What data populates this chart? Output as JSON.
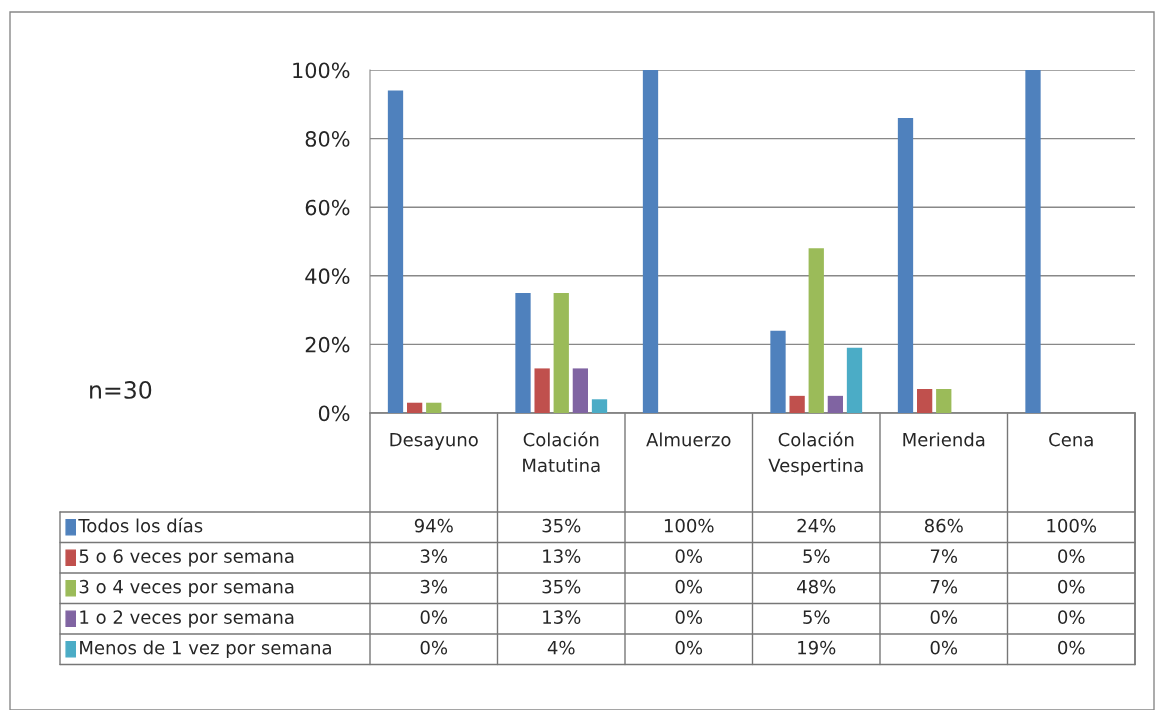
{
  "chart_data": {
    "type": "bar",
    "categories": [
      "Desayuno",
      "Colación Matutina",
      "Almuerzo",
      "Colación Vespertina",
      "Merienda",
      "Cena"
    ],
    "series": [
      {
        "name": "Todos los días",
        "color": "#4f81bd",
        "values": [
          94,
          35,
          100,
          24,
          86,
          100
        ],
        "value_labels": [
          "94%",
          "35%",
          "100%",
          "24%",
          "86%",
          "100%"
        ]
      },
      {
        "name": "5 o 6 veces por semana",
        "color": "#c0504d",
        "values": [
          3,
          13,
          0,
          5,
          7,
          0
        ],
        "value_labels": [
          "3%",
          "13%",
          "0%",
          "5%",
          "7%",
          "0%"
        ]
      },
      {
        "name": "3 o 4 veces por semana",
        "color": "#9bbb59",
        "values": [
          3,
          35,
          0,
          48,
          7,
          0
        ],
        "value_labels": [
          "3%",
          "35%",
          "0%",
          "48%",
          "7%",
          "0%"
        ]
      },
      {
        "name": "1 o 2 veces por semana",
        "color": "#8064a2",
        "values": [
          0,
          13,
          0,
          5,
          0,
          0
        ],
        "value_labels": [
          "0%",
          "13%",
          "0%",
          "5%",
          "0%",
          "0%"
        ]
      },
      {
        "name": "Menos de 1 vez por semana",
        "color": "#4bacc6",
        "values": [
          0,
          4,
          0,
          19,
          0,
          0
        ],
        "value_labels": [
          "0%",
          "4%",
          "0%",
          "19%",
          "0%",
          "0%"
        ]
      }
    ],
    "ylim": [
      0,
      100
    ],
    "yticks": [
      {
        "value": 0,
        "label": "0%"
      },
      {
        "value": 20,
        "label": "20%"
      },
      {
        "value": 40,
        "label": "40%"
      },
      {
        "value": 60,
        "label": "60%"
      },
      {
        "value": 80,
        "label": "80%"
      },
      {
        "value": 100,
        "label": "100%"
      }
    ],
    "grid": "y",
    "legend": "bottom",
    "annotations": [
      "n=30"
    ]
  }
}
